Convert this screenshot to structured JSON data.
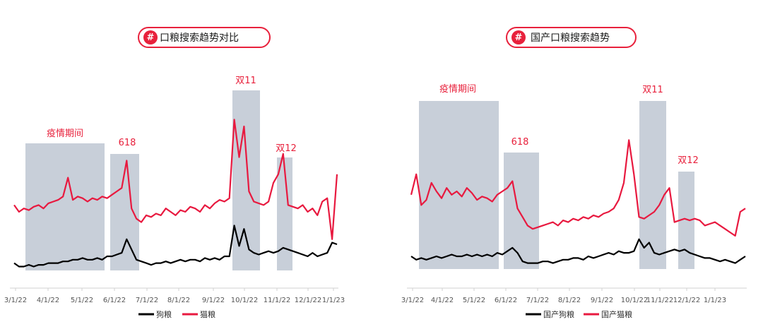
{
  "colors": {
    "dog": "#000000",
    "cat": "#e8193f",
    "band": "#c8cfd9",
    "annot": "#e8213c"
  },
  "charts": [
    {
      "title": "口粮搜索趋势对比",
      "x_ticks": [
        "3/1/22",
        "4/1/22",
        "5/1/22",
        "6/1/22",
        "7/1/22",
        "8/1/22",
        "9/1/22",
        "10/1/22",
        "11/1/22",
        "12/1/22",
        "1/1/23"
      ],
      "legend": [
        "狗粮",
        "猫粮"
      ],
      "annotations": [
        "疫情期间",
        "618",
        "双11",
        "双12"
      ]
    },
    {
      "title": "国产口粮搜索趋势",
      "x_ticks": [
        "3/1/22",
        "4/1/22",
        "5/1/22",
        "6/1/22",
        "7/1/22",
        "8/1/22",
        "9/1/22",
        "10/1/22",
        "11/1/22",
        "12/1/22",
        "1/1/23"
      ],
      "legend": [
        "国产狗粮",
        "国产猫粮"
      ],
      "annotations": [
        "疫情期间",
        "618",
        "双11",
        "双12"
      ]
    }
  ],
  "chart_data": [
    {
      "type": "line",
      "title": "口粮搜索趋势对比",
      "x_start": "3/1/22",
      "x_end": "2/28/23",
      "x_unit": "week index (0 = 3/1/22, 4 samples per month)",
      "ylim": [
        0,
        100
      ],
      "series": [
        {
          "name": "狗粮",
          "values": [
            8,
            6,
            6,
            7,
            6,
            7,
            7,
            8,
            8,
            8,
            9,
            9,
            10,
            10,
            11,
            10,
            10,
            11,
            10,
            12,
            12,
            13,
            14,
            22,
            16,
            10,
            9,
            8,
            7,
            8,
            8,
            9,
            8,
            9,
            10,
            9,
            10,
            10,
            9,
            11,
            10,
            11,
            10,
            12,
            12,
            30,
            18,
            28,
            16,
            14,
            13,
            14,
            15,
            14,
            15,
            17,
            16,
            15,
            14,
            13,
            12,
            14,
            12,
            13,
            14,
            20,
            19
          ]
        },
        {
          "name": "猫粮",
          "values": [
            42,
            38,
            40,
            39,
            41,
            42,
            40,
            43,
            44,
            45,
            47,
            58,
            45,
            47,
            46,
            44,
            46,
            45,
            47,
            46,
            48,
            50,
            52,
            68,
            40,
            34,
            32,
            36,
            35,
            37,
            36,
            40,
            38,
            36,
            39,
            38,
            41,
            40,
            38,
            42,
            40,
            43,
            45,
            44,
            46,
            92,
            70,
            88,
            50,
            44,
            43,
            42,
            44,
            55,
            60,
            72,
            42,
            41,
            40,
            42,
            38,
            40,
            36,
            44,
            46,
            22,
            60
          ]
        }
      ]
    },
    {
      "type": "line",
      "title": "国产口粮搜索趋势",
      "x_start": "3/1/22",
      "x_end": "2/28/23",
      "x_unit": "week index (0 = 3/1/22, 4 samples per month)",
      "ylim": [
        0,
        100
      ],
      "series": [
        {
          "name": "国产狗粮",
          "values": [
            12,
            10,
            11,
            10,
            11,
            12,
            11,
            12,
            13,
            12,
            12,
            13,
            12,
            13,
            12,
            13,
            12,
            14,
            13,
            15,
            17,
            14,
            9,
            8,
            8,
            8,
            9,
            9,
            8,
            9,
            10,
            10,
            11,
            11,
            10,
            12,
            11,
            12,
            13,
            14,
            13,
            15,
            14,
            14,
            15,
            22,
            17,
            20,
            14,
            13,
            14,
            15,
            16,
            15,
            16,
            14,
            13,
            12,
            11,
            11,
            10,
            9,
            10,
            9,
            8,
            10,
            12
          ]
        },
        {
          "name": "国产猫粮",
          "values": [
            48,
            60,
            42,
            45,
            55,
            50,
            46,
            52,
            48,
            50,
            47,
            52,
            49,
            45,
            47,
            46,
            44,
            48,
            50,
            52,
            56,
            40,
            35,
            30,
            28,
            29,
            30,
            31,
            32,
            30,
            33,
            32,
            34,
            33,
            35,
            34,
            36,
            35,
            37,
            38,
            40,
            45,
            55,
            80,
            60,
            35,
            34,
            36,
            38,
            42,
            48,
            52,
            32,
            33,
            34,
            33,
            34,
            33,
            30,
            31,
            32,
            30,
            28,
            26,
            24,
            38,
            40
          ]
        }
      ]
    }
  ]
}
